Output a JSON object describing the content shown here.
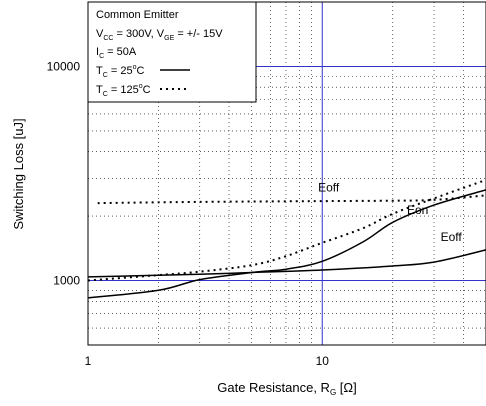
{
  "chart_data": {
    "type": "line",
    "xlabel_main": "Gate Resistance, R",
    "xlabel_sub": "G",
    "xlabel_unit": " [Ω]",
    "ylabel": "Switching Loss [uJ]",
    "xscale": "log",
    "yscale": "log",
    "xlim": [
      1,
      50
    ],
    "ylim": [
      500,
      20000
    ],
    "x_tick_labels": [
      {
        "value": 1,
        "label": "1"
      },
      {
        "value": 10,
        "label": "10"
      }
    ],
    "y_tick_labels": [
      {
        "value": 1000,
        "label": "1000"
      },
      {
        "value": 10000,
        "label": "10000"
      }
    ],
    "grid": true,
    "legend_position": "top-left",
    "legend": {
      "title": "Common Emitter",
      "line1": {
        "parts": [
          [
            "V",
            ""
          ],
          [
            "CC",
            "sub"
          ],
          [
            " = 300V, V",
            ""
          ],
          [
            "GE",
            "sub"
          ],
          [
            " = +/- 15V",
            ""
          ]
        ]
      },
      "line2": {
        "parts": [
          [
            "I",
            ""
          ],
          [
            "C",
            "sub"
          ],
          [
            " = 50A",
            ""
          ]
        ]
      },
      "line3": {
        "parts": [
          [
            "T",
            ""
          ],
          [
            "C",
            "sub"
          ],
          [
            " = 25",
            ""
          ],
          [
            "o",
            "sup"
          ],
          [
            "C",
            ""
          ]
        ],
        "style": "solid"
      },
      "line4": {
        "parts": [
          [
            "T",
            ""
          ],
          [
            "C",
            "sub"
          ],
          [
            " = 125",
            ""
          ],
          [
            "o",
            "sup"
          ],
          [
            "C",
            ""
          ]
        ],
        "style": "dotted"
      }
    },
    "series": [
      {
        "label": "Eon",
        "temperature": "25C",
        "style": "solid",
        "x": [
          1,
          2,
          3,
          5,
          7,
          10,
          15,
          20,
          30,
          50
        ],
        "y": [
          830,
          900,
          1010,
          1090,
          1130,
          1230,
          1520,
          1870,
          2250,
          2650
        ]
      },
      {
        "label": "Eoff",
        "temperature": "25C",
        "style": "solid",
        "x": [
          1,
          3,
          5,
          10,
          20,
          30,
          50
        ],
        "y": [
          1040,
          1070,
          1090,
          1120,
          1170,
          1220,
          1390
        ]
      },
      {
        "label": "Eon",
        "temperature": "125C",
        "style": "dotted",
        "x": [
          1,
          2,
          3,
          5,
          7,
          10,
          15,
          20,
          30,
          50
        ],
        "y": [
          1000,
          1060,
          1100,
          1180,
          1300,
          1500,
          1760,
          2050,
          2420,
          2950
        ]
      },
      {
        "label": "Eoff",
        "temperature": "125C",
        "style": "dotted",
        "x": [
          1.1,
          3,
          10,
          20,
          30,
          50
        ],
        "y": [
          2300,
          2330,
          2350,
          2360,
          2380,
          2500
        ]
      }
    ],
    "annotations": [
      {
        "text": "Eoff",
        "x": 9.6,
        "y": 2600
      },
      {
        "text": "Eon",
        "x": 23,
        "y": 2050
      },
      {
        "text": "Eoff",
        "x": 32,
        "y": 1530
      }
    ]
  }
}
